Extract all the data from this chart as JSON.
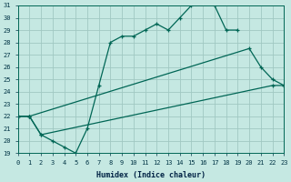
{
  "xlabel": "Humidex (Indice chaleur)",
  "bg_color": "#c5e8e2",
  "grid_color": "#a0c8c2",
  "line_color": "#006655",
  "x_min": 0,
  "x_max": 23,
  "y_min": 19,
  "y_max": 31,
  "series": [
    {
      "x": [
        0,
        1,
        2,
        3,
        4,
        5,
        6,
        7,
        8,
        9,
        10,
        11,
        12,
        13,
        14,
        15,
        16,
        17,
        18,
        19
      ],
      "y": [
        22,
        22,
        20.5,
        20,
        19.5,
        19,
        21,
        24.5,
        28,
        28.5,
        28.5,
        29,
        29.5,
        29,
        30,
        31,
        31.5,
        31,
        29,
        29
      ]
    },
    {
      "x": [
        0,
        1,
        20,
        21,
        22,
        23
      ],
      "y": [
        22,
        22,
        27.5,
        26,
        25,
        24.5
      ]
    },
    {
      "x": [
        0,
        1,
        2,
        22,
        23
      ],
      "y": [
        22,
        22,
        20.5,
        24.5,
        24.5
      ]
    }
  ]
}
